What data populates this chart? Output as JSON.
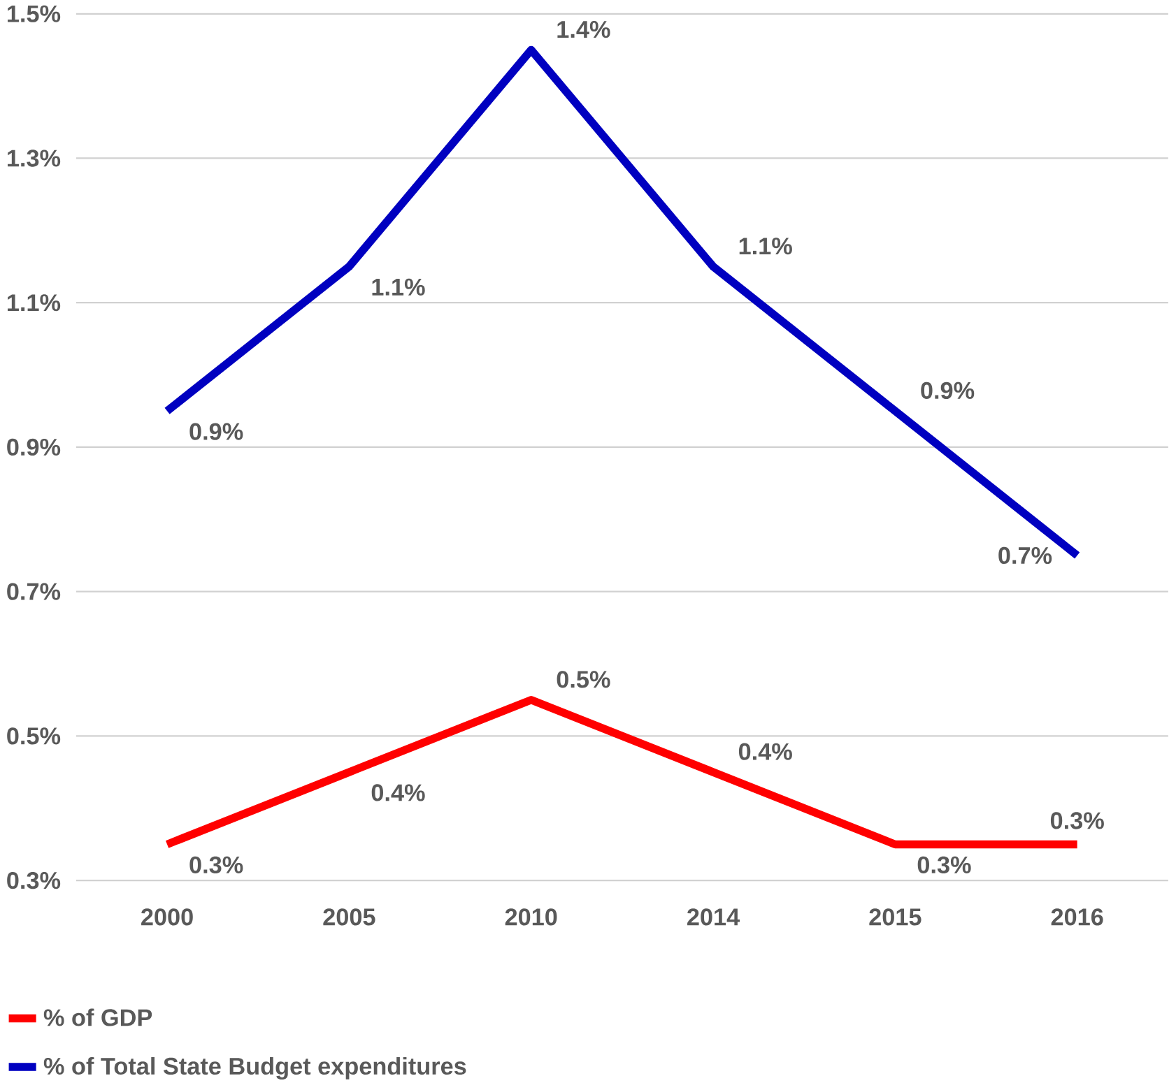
{
  "chart_data": {
    "type": "line",
    "categories": [
      "2000",
      "2005",
      "2010",
      "2014",
      "2015",
      "2016"
    ],
    "series": [
      {
        "name": "% of GDP",
        "color": "#ff0000",
        "values": [
          0.35,
          0.45,
          0.55,
          0.45,
          0.35,
          0.35
        ],
        "value_labels": [
          "0.3%",
          "0.4%",
          "0.5%",
          "0.4%",
          "0.3%",
          "0.3%"
        ]
      },
      {
        "name": "% of Total State Budget expenditures",
        "color": "#0000c0",
        "values": [
          0.95,
          1.15,
          1.45,
          1.15,
          0.95,
          0.75
        ],
        "value_labels": [
          "0.9%",
          "1.1%",
          "1.4%",
          "1.1%",
          "0.9%",
          "0.7%"
        ]
      }
    ],
    "ylim": [
      0.3,
      1.5
    ],
    "yticks": [
      {
        "value": 0.3,
        "label": "0.3%"
      },
      {
        "value": 0.5,
        "label": "0.5%"
      },
      {
        "value": 0.7,
        "label": "0.7%"
      },
      {
        "value": 0.9,
        "label": "0.9%"
      },
      {
        "value": 1.1,
        "label": "1.1%"
      },
      {
        "value": 1.3,
        "label": "1.3%"
      },
      {
        "value": 1.5,
        "label": "1.5%"
      }
    ],
    "grid": "y",
    "legend": "bottom",
    "marker": "none",
    "line_style": "solid"
  }
}
